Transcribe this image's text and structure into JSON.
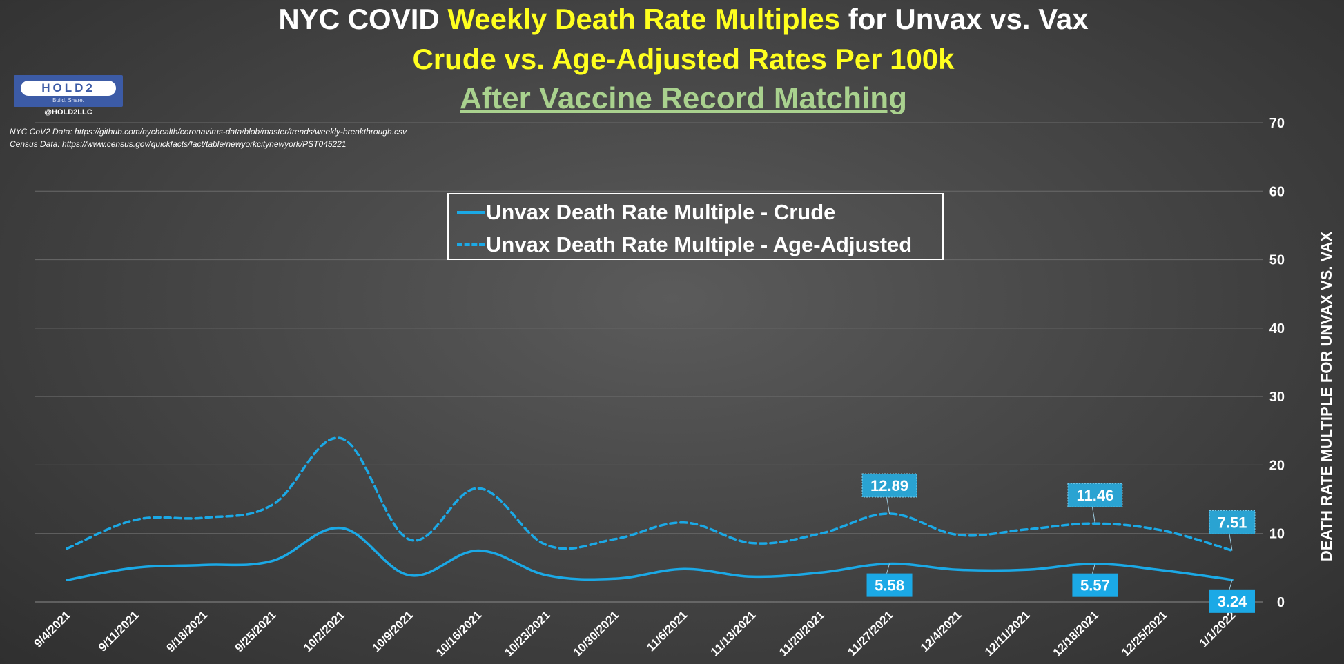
{
  "header": {
    "title_part1": "NYC COVID ",
    "title_highlight": "Weekly Death Rate Multiples",
    "title_part2": " for Unvax vs. Vax",
    "subtitle": "Crude vs. Age-Adjusted Rates Per 100k",
    "subtitle2": "After Vaccine Record Matching"
  },
  "logo": {
    "text": "HOLD2",
    "tagline": "Build. Share.",
    "handle": "@HOLD2LLC"
  },
  "sources": [
    "NYC CoV2 Data: https://github.com/nychealth/coronavirus-data/blob/master/trends/weekly-breakthrough.csv",
    "Census Data: https://www.census.gov/quickfacts/fact/table/newyorkcitynewyork/PST045221"
  ],
  "colors": {
    "series": "#1ba9e6",
    "title_yellow": "#ffff1f",
    "subtitle_green": "#a9d18e",
    "gridline": "#6a6a6a"
  },
  "chart_data": {
    "type": "line",
    "title": "NYC COVID Weekly Death Rate Multiples for Unvax vs. Vax",
    "ylabel": "DEATH RATE MULTIPLE FOR UNVAX VS. VAX",
    "xlabel": "",
    "ylim": [
      0,
      70
    ],
    "y_ticks": [
      0,
      10,
      20,
      30,
      40,
      50,
      60,
      70
    ],
    "y_axis_side": "right",
    "grid": true,
    "legend_position": "top-center",
    "categories": [
      "9/4/2021",
      "9/11/2021",
      "9/18/2021",
      "9/25/2021",
      "10/2/2021",
      "10/9/2021",
      "10/16/2021",
      "10/23/2021",
      "10/30/2021",
      "11/6/2021",
      "11/13/2021",
      "11/20/2021",
      "11/27/2021",
      "12/4/2021",
      "12/11/2021",
      "12/18/2021",
      "12/25/2021",
      "1/1/2022"
    ],
    "series": [
      {
        "name": "Unvax Death Rate Multiple - Crude",
        "style": "solid",
        "values": [
          3.2,
          5.0,
          5.4,
          6.0,
          10.8,
          3.9,
          7.5,
          3.9,
          3.4,
          4.8,
          3.7,
          4.3,
          5.58,
          4.7,
          4.7,
          5.57,
          4.6,
          3.24
        ]
      },
      {
        "name": "Unvax Death Rate Multiple - Age-Adjusted",
        "style": "dashed",
        "values": [
          7.8,
          12.0,
          12.3,
          14.2,
          23.9,
          9.1,
          16.6,
          8.3,
          9.2,
          11.6,
          8.6,
          10.0,
          12.89,
          9.8,
          10.6,
          11.46,
          10.4,
          7.51
        ]
      }
    ],
    "data_labels": [
      {
        "series": 0,
        "index": 12,
        "text": "5.58",
        "placement": "below"
      },
      {
        "series": 0,
        "index": 15,
        "text": "5.57",
        "placement": "below"
      },
      {
        "series": 0,
        "index": 17,
        "text": "3.24",
        "placement": "below"
      },
      {
        "series": 1,
        "index": 12,
        "text": "12.89",
        "placement": "above"
      },
      {
        "series": 1,
        "index": 15,
        "text": "11.46",
        "placement": "above"
      },
      {
        "series": 1,
        "index": 17,
        "text": "7.51",
        "placement": "above"
      }
    ]
  }
}
